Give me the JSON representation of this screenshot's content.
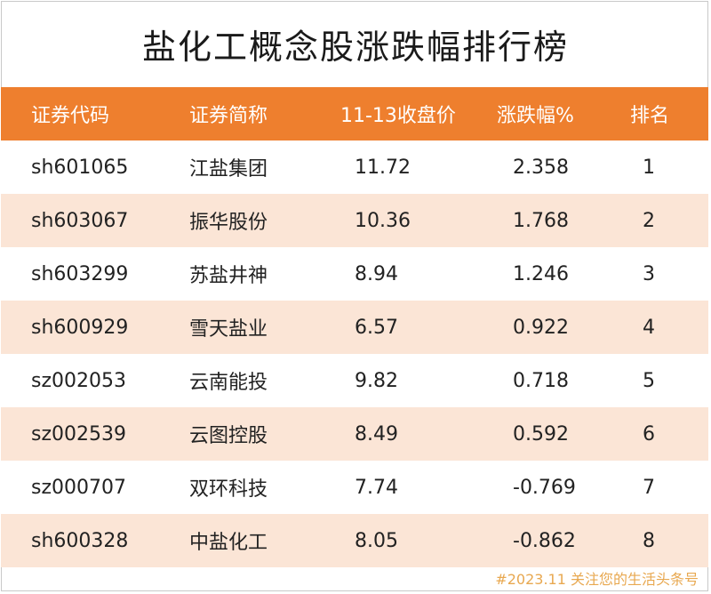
{
  "title": "盐化工概念股涨跌幅排行榜",
  "table": {
    "headers": [
      "证券代码",
      "证券简称",
      "11-13收盘价",
      "涨跌幅%",
      "排名"
    ],
    "rows": [
      [
        "sh601065",
        "江盐集团",
        "11.72",
        "2.358",
        "1"
      ],
      [
        "sh603067",
        "振华股份",
        "10.36",
        "1.768",
        "2"
      ],
      [
        "sh603299",
        "苏盐井神",
        "8.94",
        "1.246",
        "3"
      ],
      [
        "sh600929",
        "雪天盐业",
        "6.57",
        "0.922",
        "4"
      ],
      [
        "sz002053",
        "云南能投",
        "9.82",
        "0.718",
        "5"
      ],
      [
        "sz002539",
        "云图控股",
        "8.49",
        "0.592",
        "6"
      ],
      [
        "sz000707",
        "双环科技",
        "7.74",
        "-0.769",
        "7"
      ],
      [
        "sh600328",
        "中盐化工",
        "8.05",
        "-0.862",
        "8"
      ]
    ]
  },
  "footer": "#2023.11 关注您的生活头条号",
  "colors": {
    "header_bg": "#ee7f2e",
    "stripe_bg": "#fbe5d6",
    "footer_text": "#e8a850"
  }
}
